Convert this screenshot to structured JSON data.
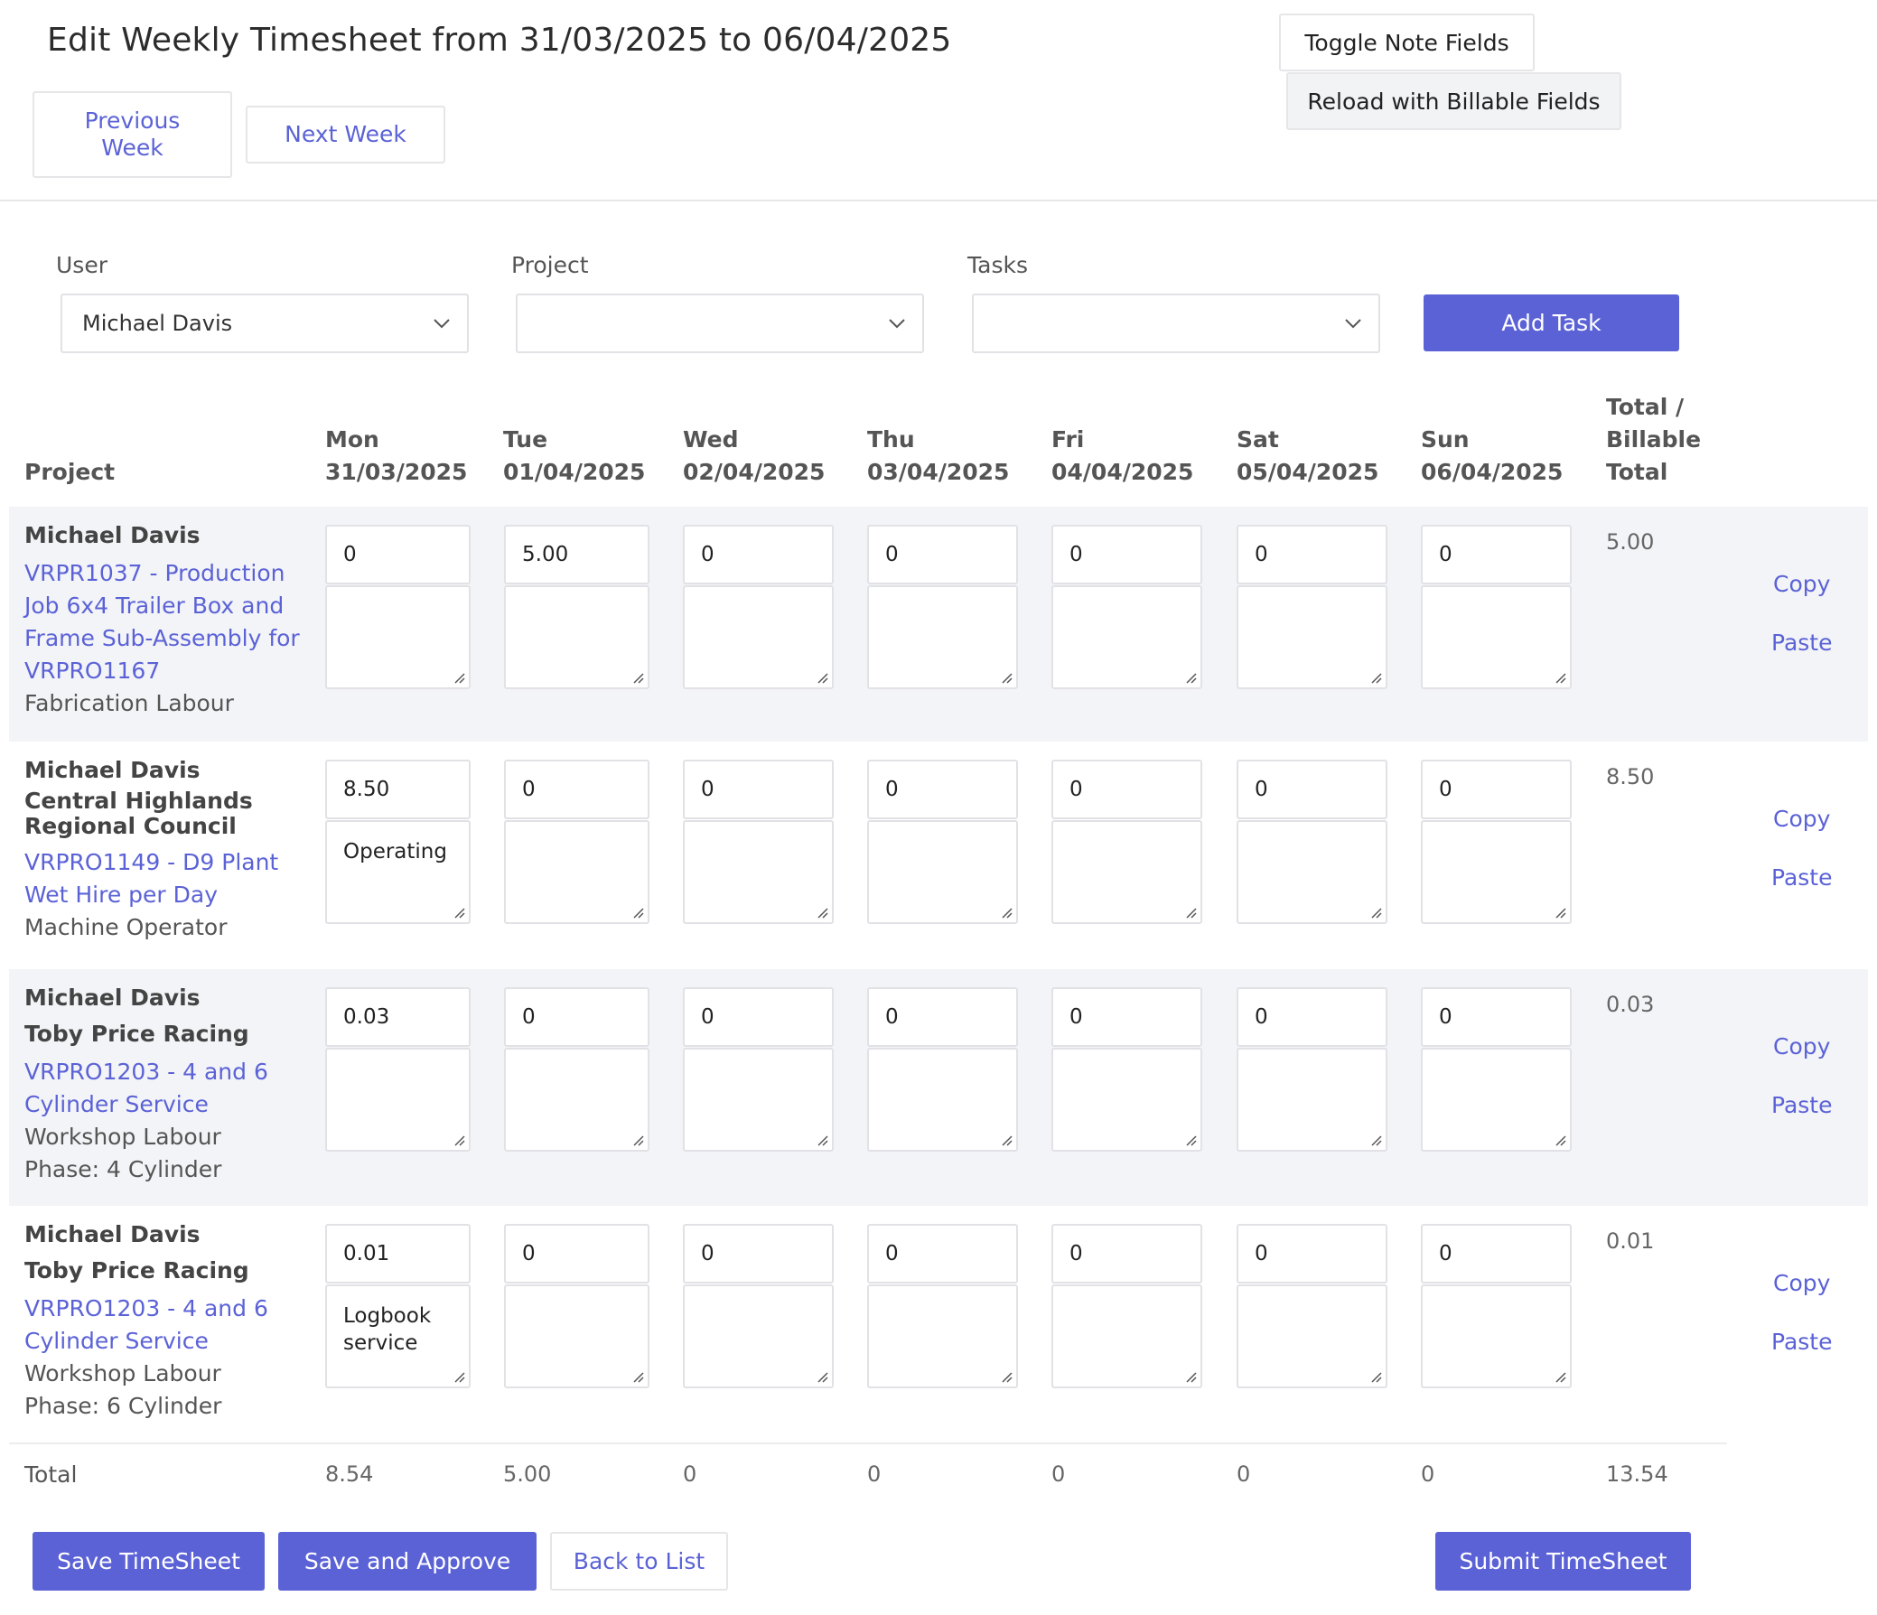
{
  "header": {
    "title": "Edit Weekly Timesheet from 31/03/2025 to 06/04/2025",
    "previous_week": "Previous Week",
    "next_week": "Next Week",
    "toggle_note_fields": "Toggle Note Fields",
    "reload_billable": "Reload with Billable Fields"
  },
  "filters": {
    "user_label": "User",
    "user_value": "Michael Davis",
    "project_label": "Project",
    "project_value": "",
    "tasks_label": "Tasks",
    "tasks_value": "",
    "add_task": "Add Task"
  },
  "table": {
    "columns": {
      "project": "Project",
      "days": [
        {
          "day": "Mon",
          "date": "31/03/2025"
        },
        {
          "day": "Tue",
          "date": "01/04/2025"
        },
        {
          "day": "Wed",
          "date": "02/04/2025"
        },
        {
          "day": "Thu",
          "date": "03/04/2025"
        },
        {
          "day": "Fri",
          "date": "04/04/2025"
        },
        {
          "day": "Sat",
          "date": "05/04/2025"
        },
        {
          "day": "Sun",
          "date": "06/04/2025"
        }
      ],
      "total_line1": "Total /",
      "total_line2": "Billable",
      "total_line3": "Total"
    },
    "rows": [
      {
        "user": "Michael Davis",
        "client": "",
        "project_link": "VRPR1037 - Production Job 6x4 Trailer Box and Frame Sub-Assembly for VRPRO1167",
        "task": "Fabrication Labour",
        "phase": "",
        "hours": [
          "0",
          "5.00",
          "0",
          "0",
          "0",
          "0",
          "0"
        ],
        "notes": [
          "",
          "",
          "",
          "",
          "",
          "",
          ""
        ],
        "total": "5.00",
        "copy": "Copy",
        "paste": "Paste"
      },
      {
        "user": "Michael Davis",
        "client": "Central Highlands Regional Council",
        "project_link": "VRPRO1149 - D9 Plant Wet Hire per Day",
        "task": "Machine Operator",
        "phase": "",
        "hours": [
          "8.50",
          "0",
          "0",
          "0",
          "0",
          "0",
          "0"
        ],
        "notes": [
          "Operating",
          "",
          "",
          "",
          "",
          "",
          ""
        ],
        "total": "8.50",
        "copy": "Copy",
        "paste": "Paste"
      },
      {
        "user": "Michael Davis",
        "client": "Toby Price Racing",
        "project_link": "VRPRO1203 - 4 and 6 Cylinder Service",
        "task": "Workshop Labour",
        "phase": "Phase: 4 Cylinder",
        "hours": [
          "0.03",
          "0",
          "0",
          "0",
          "0",
          "0",
          "0"
        ],
        "notes": [
          "",
          "",
          "",
          "",
          "",
          "",
          ""
        ],
        "total": "0.03",
        "copy": "Copy",
        "paste": "Paste"
      },
      {
        "user": "Michael Davis",
        "client": "Toby Price Racing",
        "project_link": "VRPRO1203 - 4 and 6 Cylinder Service",
        "task": "Workshop Labour",
        "phase": "Phase: 6 Cylinder",
        "hours": [
          "0.01",
          "0",
          "0",
          "0",
          "0",
          "0",
          "0"
        ],
        "notes": [
          "Logbook service",
          "",
          "",
          "",
          "",
          "",
          ""
        ],
        "total": "0.01",
        "copy": "Copy",
        "paste": "Paste"
      }
    ],
    "totals": {
      "label": "Total",
      "days": [
        "8.54",
        "5.00",
        "0",
        "0",
        "0",
        "0",
        "0"
      ],
      "grand": "13.54"
    }
  },
  "footer": {
    "save": "Save TimeSheet",
    "save_approve": "Save and Approve",
    "back": "Back to List",
    "submit": "Submit TimeSheet"
  },
  "colors": {
    "accent": "#5b62d6",
    "row_shade": "#f3f4f7"
  }
}
